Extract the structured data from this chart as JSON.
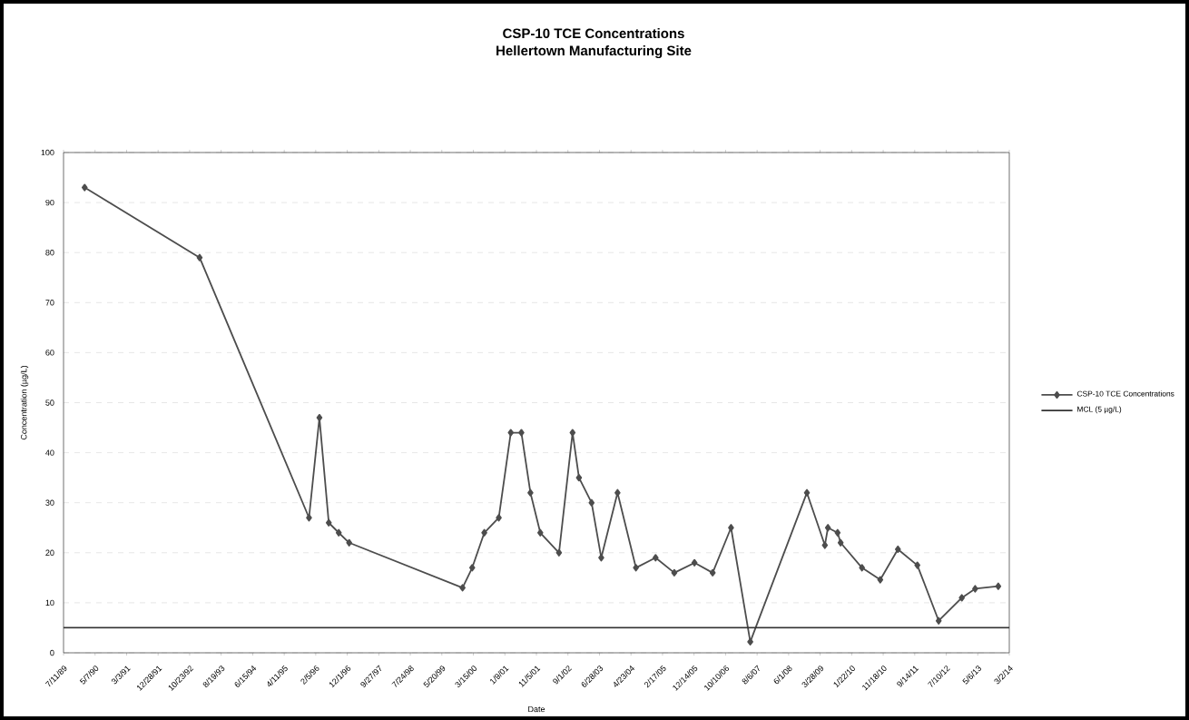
{
  "chart_data": {
    "type": "line",
    "title": "CSP-10 TCE Concentrations",
    "subtitle": "Hellertown Manufacturing Site",
    "xlabel": "Date",
    "ylabel": "Concentration (µg/L)",
    "xlim": [
      "1989-07-11",
      "2014-03-02"
    ],
    "ylim": [
      0,
      100
    ],
    "xticks": [
      {
        "value": "1989-07-11",
        "label": "7/11/89"
      },
      {
        "value": "1990-05-07",
        "label": "5/7/90"
      },
      {
        "value": "1991-03-03",
        "label": "3/3/91"
      },
      {
        "value": "1991-12-28",
        "label": "12/28/91"
      },
      {
        "value": "1992-10-23",
        "label": "10/23/92"
      },
      {
        "value": "1993-08-19",
        "label": "8/19/93"
      },
      {
        "value": "1994-06-15",
        "label": "6/15/94"
      },
      {
        "value": "1995-04-11",
        "label": "4/11/95"
      },
      {
        "value": "1996-02-05",
        "label": "2/5/96"
      },
      {
        "value": "1996-12-01",
        "label": "12/1/96"
      },
      {
        "value": "1997-09-27",
        "label": "9/27/97"
      },
      {
        "value": "1998-07-24",
        "label": "7/24/98"
      },
      {
        "value": "1999-05-20",
        "label": "5/20/99"
      },
      {
        "value": "2000-03-15",
        "label": "3/15/00"
      },
      {
        "value": "2001-01-09",
        "label": "1/9/01"
      },
      {
        "value": "2001-11-05",
        "label": "11/5/01"
      },
      {
        "value": "2002-09-01",
        "label": "9/1/02"
      },
      {
        "value": "2003-06-28",
        "label": "6/28/03"
      },
      {
        "value": "2004-04-23",
        "label": "4/23/04"
      },
      {
        "value": "2005-02-17",
        "label": "2/17/05"
      },
      {
        "value": "2005-12-14",
        "label": "12/14/05"
      },
      {
        "value": "2006-10-10",
        "label": "10/10/06"
      },
      {
        "value": "2007-08-06",
        "label": "8/6/07"
      },
      {
        "value": "2008-06-01",
        "label": "6/1/08"
      },
      {
        "value": "2009-03-28",
        "label": "3/28/09"
      },
      {
        "value": "2010-01-22",
        "label": "1/22/10"
      },
      {
        "value": "2010-11-18",
        "label": "11/18/10"
      },
      {
        "value": "2011-09-14",
        "label": "9/14/11"
      },
      {
        "value": "2012-07-10",
        "label": "7/10/12"
      },
      {
        "value": "2013-05-06",
        "label": "5/6/13"
      },
      {
        "value": "2014-03-02",
        "label": "3/2/14"
      }
    ],
    "yticks": [
      0,
      10,
      20,
      30,
      40,
      50,
      60,
      70,
      80,
      90,
      100
    ],
    "grid": "y",
    "legend": "right",
    "marker": "diamond",
    "series": [
      {
        "name": "CSP-10 TCE Concentrations",
        "color": "#4d4d4d",
        "x": [
          "1990-01-28",
          "1993-01-26",
          "1995-12-03",
          "1996-03-11",
          "1996-06-08",
          "1996-09-11",
          "1996-12-19",
          "1999-12-03",
          "2000-03-04",
          "2000-06-27",
          "2000-11-12",
          "2001-03-06",
          "2001-06-15",
          "2001-09-09",
          "2001-12-12",
          "2002-06-08",
          "2002-10-15",
          "2002-12-15",
          "2003-04-14",
          "2003-07-15",
          "2003-12-17",
          "2004-06-09",
          "2004-12-13",
          "2005-06-09",
          "2005-12-18",
          "2006-06-09",
          "2006-12-01",
          "2007-06-02",
          "2008-11-22",
          "2009-05-12",
          "2009-06-10",
          "2009-09-10",
          "2009-10-09",
          "2010-04-30",
          "2010-10-21",
          "2011-04-07",
          "2011-10-09",
          "2012-04-29",
          "2012-12-05",
          "2013-04-11",
          "2013-11-17"
        ],
        "values": [
          93,
          79,
          27,
          47,
          26,
          24,
          22,
          13,
          17,
          24,
          27,
          44,
          44,
          32,
          24,
          20,
          44,
          35,
          30,
          19,
          32,
          17,
          19,
          16,
          18,
          16,
          25,
          2.2,
          32,
          21.5,
          25,
          24,
          22,
          17,
          14.6,
          20.7,
          17.5,
          6.4,
          11,
          12.8,
          13.3
        ]
      },
      {
        "name": "MCL (5 µg/L)",
        "color": "#333333",
        "marker": "none",
        "x": [
          "1989-07-11",
          "2014-03-02"
        ],
        "values": [
          5,
          5
        ]
      }
    ]
  }
}
